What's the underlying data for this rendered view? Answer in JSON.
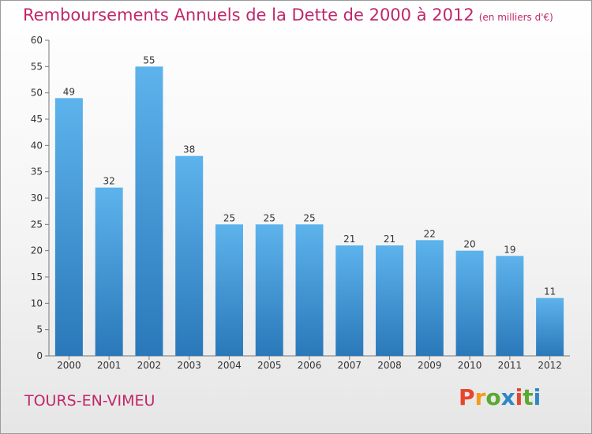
{
  "header": {
    "title": "Remboursements Annuels de la Dette de 2000 à 2012",
    "unit": "(en milliers d'€)"
  },
  "footer": {
    "commune": "TOURS-EN-VIMEU",
    "logo": "Proxiti"
  },
  "colors": {
    "title": "#c0266b",
    "bar_top": "#5db3ec",
    "bar_bottom": "#2a78b9",
    "logo_letters": [
      "#e8452c",
      "#f29a1d",
      "#5aa832",
      "#2f86c7",
      "#e8452c",
      "#5aa832",
      "#2f86c7"
    ]
  },
  "chart_data": {
    "type": "bar",
    "categories": [
      "2000",
      "2001",
      "2002",
      "2003",
      "2004",
      "2005",
      "2006",
      "2007",
      "2008",
      "2009",
      "2010",
      "2011",
      "2012"
    ],
    "values": [
      49,
      32,
      55,
      38,
      25,
      25,
      25,
      21,
      21,
      22,
      20,
      19,
      11
    ],
    "ylim": [
      0,
      60
    ],
    "yticks": [
      0,
      5,
      10,
      15,
      20,
      25,
      30,
      35,
      40,
      45,
      50,
      55,
      60
    ],
    "grid": false,
    "data_labels": true
  }
}
